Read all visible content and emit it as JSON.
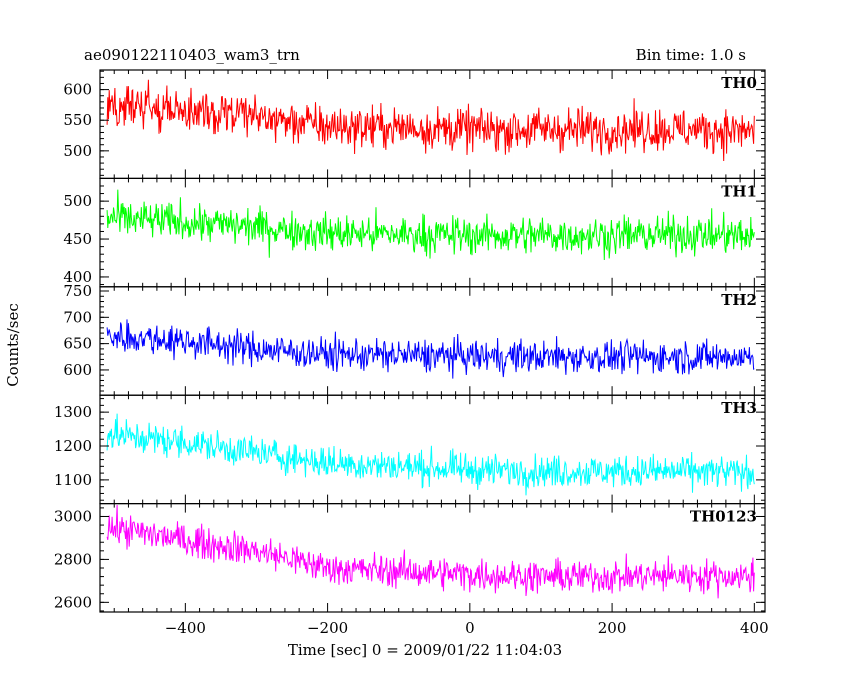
{
  "header": {
    "title": "ae090122110403_wam3_trn",
    "bin_time": "Bin time: 1.0 s"
  },
  "axes": {
    "xlabel": "Time [sec] 0 = 2009/01/22 11:04:03",
    "ylabel": "Counts/sec",
    "xlim": [
      -520,
      415
    ],
    "xticks": [
      -400,
      -200,
      0,
      200,
      400
    ],
    "xtick_labels": [
      "−400",
      "−200",
      "0",
      "200",
      "400"
    ]
  },
  "chart_data": {
    "type": "line",
    "title": "ae090122110403_wam3_trn",
    "xlabel": "Time [sec] 0 = 2009/01/22 11:04:03",
    "ylabel": "Counts/sec",
    "x_range": [
      -510,
      400
    ],
    "bin_time_s": 1.0,
    "grid": false,
    "panels": [
      {
        "name": "TH0",
        "color": "#ff0000",
        "ylim": [
          455,
          632
        ],
        "yticks": [
          500,
          550,
          600
        ],
        "trend": {
          "x": [
            -510,
            -400,
            -300,
            -200,
            -100,
            0,
            100,
            200,
            300,
            400
          ],
          "y": [
            575,
            565,
            555,
            540,
            538,
            535,
            535,
            535,
            535,
            532
          ]
        },
        "noise_amplitude": 28
      },
      {
        "name": "TH1",
        "color": "#00ff00",
        "ylim": [
          387,
          530
        ],
        "yticks": [
          400,
          450,
          500
        ],
        "trend": {
          "x": [
            -510,
            -400,
            -300,
            -200,
            -100,
            0,
            100,
            200,
            300,
            400
          ],
          "y": [
            478,
            472,
            466,
            458,
            456,
            455,
            455,
            455,
            456,
            454
          ]
        },
        "noise_amplitude": 20
      },
      {
        "name": "TH2",
        "color": "#0000ff",
        "ylim": [
          552,
          758
        ],
        "yticks": [
          550,
          600,
          650,
          700,
          750
        ],
        "trend": {
          "x": [
            -510,
            -400,
            -300,
            -200,
            -100,
            0,
            100,
            200,
            300,
            400
          ],
          "y": [
            665,
            655,
            640,
            630,
            628,
            626,
            625,
            625,
            625,
            624
          ]
        },
        "noise_amplitude": 25
      },
      {
        "name": "TH3",
        "color": "#00ffff",
        "ylim": [
          1030,
          1350
        ],
        "yticks": [
          1100,
          1200,
          1300
        ],
        "trend": {
          "x": [
            -510,
            -400,
            -300,
            -200,
            -100,
            0,
            100,
            200,
            300,
            400
          ],
          "y": [
            1235,
            1210,
            1180,
            1150,
            1140,
            1130,
            1125,
            1125,
            1125,
            1120
          ]
        },
        "noise_amplitude": 38
      },
      {
        "name": "TH0123",
        "color": "#ff00ff",
        "ylim": [
          2555,
          3060
        ],
        "yticks": [
          2600,
          2800,
          3000
        ],
        "trend": {
          "x": [
            -510,
            -400,
            -300,
            -200,
            -100,
            0,
            100,
            200,
            300,
            400
          ],
          "y": [
            2950,
            2890,
            2840,
            2760,
            2745,
            2730,
            2720,
            2720,
            2725,
            2720
          ]
        },
        "noise_amplitude": 60
      }
    ]
  }
}
